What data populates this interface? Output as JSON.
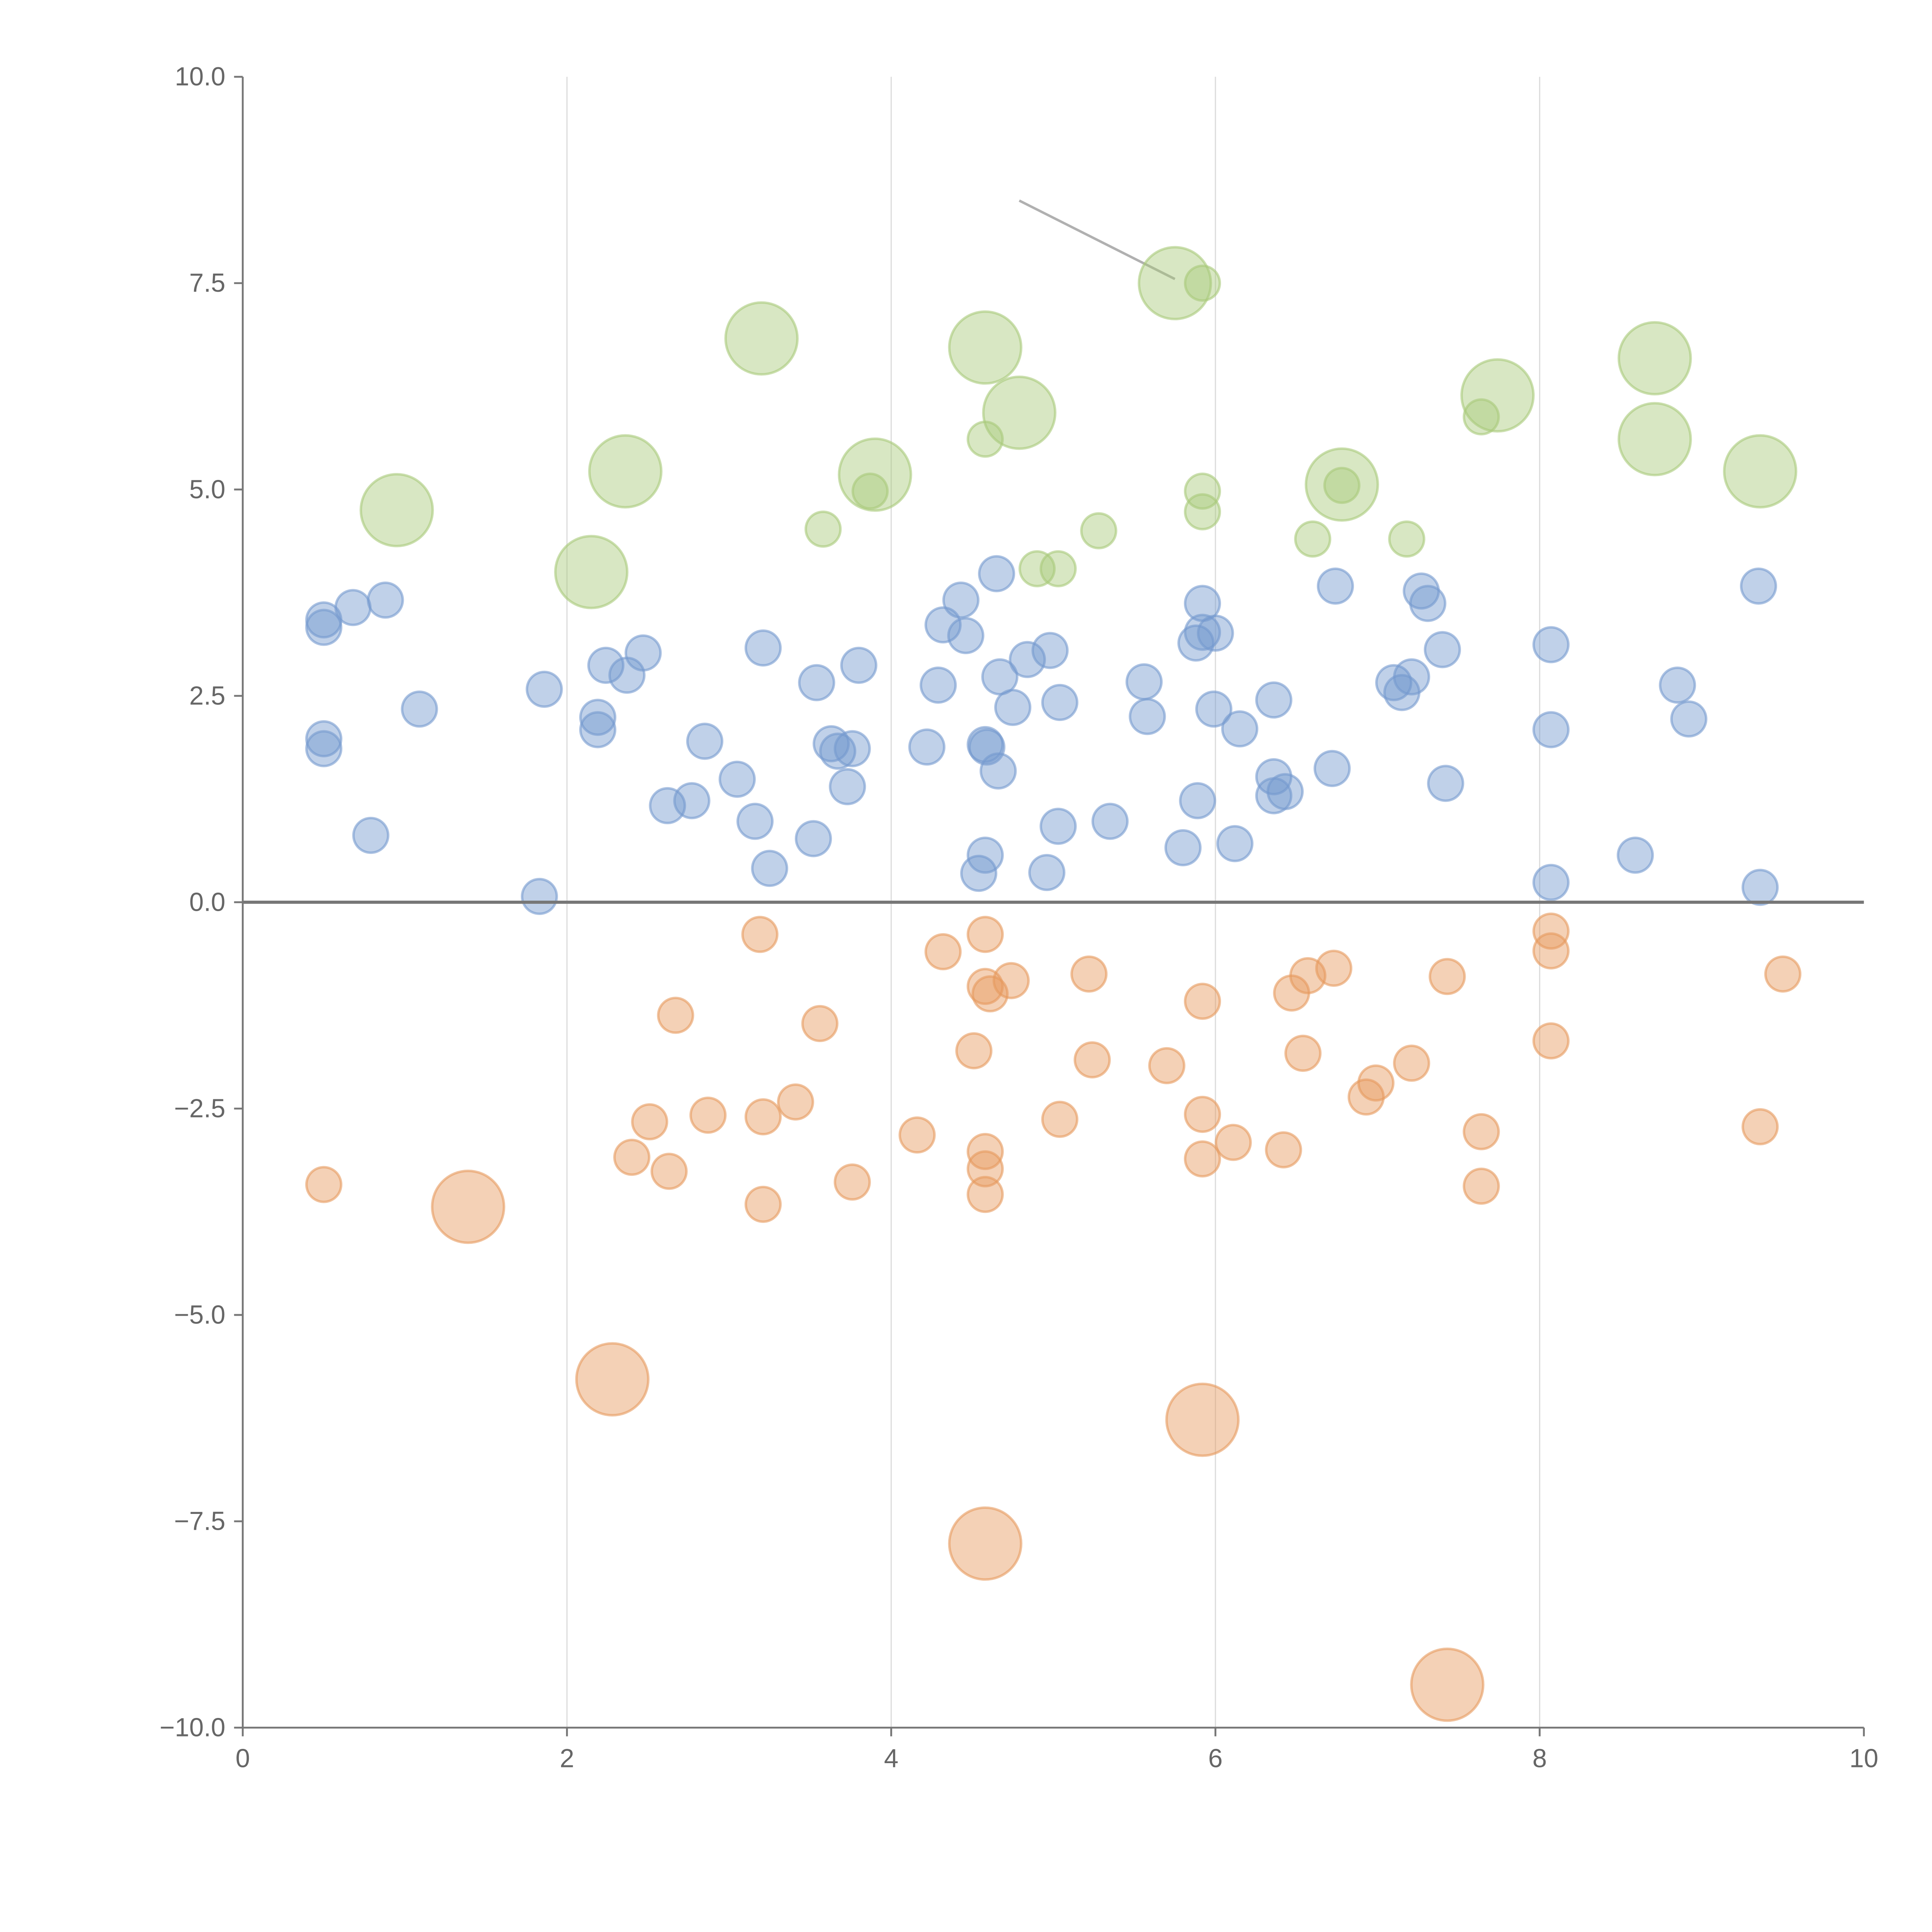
{
  "chart_data": {
    "type": "scatter",
    "title": "",
    "xlabel": "",
    "ylabel": "",
    "xlim": [
      0,
      10
    ],
    "ylim": [
      -10,
      10
    ],
    "grid": {
      "vertical": true,
      "horizontal": false
    },
    "zero_line": 0,
    "x_ticks": [
      "0",
      "2",
      "4",
      "6",
      "8",
      "10"
    ],
    "x_tick_values": [
      0,
      2,
      4,
      6,
      8,
      10
    ],
    "y_ticks": [
      "10.0",
      "7.5",
      "5.0",
      "2.5",
      "0.0",
      "−2.5",
      "−5.0",
      "−7.5",
      "−10.0"
    ],
    "y_tick_values": [
      10,
      7.5,
      5,
      2.5,
      0,
      -2.5,
      -5,
      -7.5,
      -10
    ],
    "point_format": "[x, y, size_class] where size_class 1 = small marker, 2 = large marker",
    "annotation_line": {
      "from": [
        4.79,
        8.5
      ],
      "to": [
        5.75,
        7.55
      ],
      "color": "#b0b0b0"
    },
    "series": [
      {
        "name": "green",
        "color": "#a9c97a",
        "points": [
          [
            0.95,
            4.75,
            2
          ],
          [
            2.15,
            4.0,
            2
          ],
          [
            2.36,
            5.22,
            2
          ],
          [
            3.2,
            6.83,
            2
          ],
          [
            3.9,
            5.18,
            2
          ],
          [
            3.87,
            4.98,
            1
          ],
          [
            3.58,
            4.52,
            1
          ],
          [
            4.58,
            6.72,
            2
          ],
          [
            4.79,
            5.93,
            2
          ],
          [
            4.58,
            5.61,
            1
          ],
          [
            4.9,
            4.04,
            1
          ],
          [
            5.03,
            4.04,
            1
          ],
          [
            5.28,
            4.5,
            1
          ],
          [
            5.75,
            7.5,
            2
          ],
          [
            5.92,
            7.5,
            1
          ],
          [
            5.92,
            4.98,
            1
          ],
          [
            5.92,
            4.73,
            1
          ],
          [
            6.6,
            4.4,
            1
          ],
          [
            6.78,
            5.06,
            2
          ],
          [
            6.78,
            5.05,
            1
          ],
          [
            7.18,
            4.4,
            1
          ],
          [
            7.74,
            6.14,
            2
          ],
          [
            7.64,
            5.88,
            1
          ],
          [
            8.71,
            6.59,
            2
          ],
          [
            8.71,
            5.61,
            2
          ],
          [
            9.36,
            5.22,
            2
          ]
        ]
      },
      {
        "name": "blue",
        "color": "#7499cf",
        "points": [
          [
            0.5,
            3.42,
            1
          ],
          [
            0.5,
            3.33,
            1
          ],
          [
            0.68,
            3.57,
            1
          ],
          [
            0.88,
            3.66,
            1
          ],
          [
            0.5,
            1.98,
            1
          ],
          [
            0.5,
            1.86,
            1
          ],
          [
            1.09,
            2.34,
            1
          ],
          [
            0.79,
            0.81,
            1
          ],
          [
            1.86,
            2.58,
            1
          ],
          [
            1.83,
            0.07,
            1
          ],
          [
            2.19,
            2.24,
            1
          ],
          [
            2.19,
            2.09,
            1
          ],
          [
            2.24,
            2.87,
            1
          ],
          [
            2.37,
            2.75,
            1
          ],
          [
            2.47,
            3.02,
            1
          ],
          [
            2.62,
            1.17,
            1
          ],
          [
            2.77,
            1.23,
            1
          ],
          [
            2.85,
            1.95,
            1
          ],
          [
            3.05,
            1.49,
            1
          ],
          [
            3.16,
            0.98,
            1
          ],
          [
            3.21,
            3.08,
            1
          ],
          [
            3.25,
            0.41,
            1
          ],
          [
            3.52,
            0.77,
            1
          ],
          [
            3.54,
            2.66,
            1
          ],
          [
            3.63,
            1.92,
            1
          ],
          [
            3.67,
            1.83,
            1
          ],
          [
            3.76,
            1.86,
            1
          ],
          [
            3.73,
            1.4,
            1
          ],
          [
            3.8,
            2.87,
            1
          ],
          [
            4.22,
            1.88,
            1
          ],
          [
            4.29,
            2.63,
            1
          ],
          [
            4.32,
            3.36,
            1
          ],
          [
            4.43,
            3.66,
            1
          ],
          [
            4.46,
            3.23,
            1
          ],
          [
            4.58,
            1.91,
            1
          ],
          [
            4.59,
            1.88,
            1
          ],
          [
            4.65,
            3.98,
            1
          ],
          [
            4.67,
            2.73,
            1
          ],
          [
            4.66,
            1.59,
            1
          ],
          [
            4.75,
            2.36,
            1
          ],
          [
            4.84,
            2.94,
            1
          ],
          [
            4.98,
            3.05,
            1
          ],
          [
            5.04,
            2.42,
            1
          ],
          [
            5.03,
            0.92,
            1
          ],
          [
            4.96,
            0.36,
            1
          ],
          [
            4.54,
            0.35,
            1
          ],
          [
            4.58,
            0.57,
            1
          ],
          [
            5.35,
            0.98,
            1
          ],
          [
            5.56,
            2.67,
            1
          ],
          [
            5.58,
            2.25,
            1
          ],
          [
            5.8,
            0.66,
            1
          ],
          [
            5.89,
            1.23,
            1
          ],
          [
            5.88,
            3.14,
            1
          ],
          [
            5.92,
            3.62,
            1
          ],
          [
            5.92,
            3.27,
            1
          ],
          [
            6.0,
            3.26,
            1
          ],
          [
            5.99,
            2.34,
            1
          ],
          [
            6.15,
            2.1,
            1
          ],
          [
            6.12,
            0.71,
            1
          ],
          [
            6.36,
            2.45,
            1
          ],
          [
            6.36,
            1.52,
            1
          ],
          [
            6.36,
            1.29,
            1
          ],
          [
            6.43,
            1.34,
            1
          ],
          [
            6.72,
            1.62,
            1
          ],
          [
            6.74,
            3.83,
            1
          ],
          [
            7.1,
            2.66,
            1
          ],
          [
            7.15,
            2.54,
            1
          ],
          [
            7.21,
            2.73,
            1
          ],
          [
            7.27,
            3.77,
            1
          ],
          [
            7.31,
            3.62,
            1
          ],
          [
            7.4,
            3.06,
            1
          ],
          [
            7.42,
            1.44,
            1
          ],
          [
            8.07,
            3.12,
            1
          ],
          [
            8.07,
            2.09,
            1
          ],
          [
            8.07,
            0.24,
            1
          ],
          [
            8.59,
            0.57,
            1
          ],
          [
            8.85,
            2.63,
            1
          ],
          [
            8.92,
            2.22,
            1
          ],
          [
            9.35,
            3.83,
            1
          ],
          [
            9.36,
            0.18,
            1
          ]
        ]
      },
      {
        "name": "orange",
        "color": "#e69a5e",
        "points": [
          [
            3.19,
            -0.39,
            1
          ],
          [
            2.67,
            -1.37,
            1
          ],
          [
            3.56,
            -1.47,
            1
          ],
          [
            4.32,
            -0.6,
            1
          ],
          [
            4.58,
            -0.39,
            1
          ],
          [
            4.58,
            -1.02,
            1
          ],
          [
            4.61,
            -1.11,
            1
          ],
          [
            4.74,
            -0.95,
            1
          ],
          [
            4.51,
            -1.8,
            1
          ],
          [
            5.22,
            -0.87,
            1
          ],
          [
            5.24,
            -1.91,
            1
          ],
          [
            5.7,
            -1.98,
            1
          ],
          [
            5.92,
            -1.2,
            1
          ],
          [
            6.47,
            -1.1,
            1
          ],
          [
            6.57,
            -0.89,
            1
          ],
          [
            6.73,
            -0.8,
            1
          ],
          [
            6.54,
            -1.83,
            1
          ],
          [
            6.93,
            -2.36,
            1
          ],
          [
            6.99,
            -2.19,
            1
          ],
          [
            7.21,
            -1.95,
            1
          ],
          [
            7.43,
            -0.9,
            1
          ],
          [
            8.07,
            -0.35,
            1
          ],
          [
            8.07,
            -0.59,
            1
          ],
          [
            8.07,
            -1.68,
            1
          ],
          [
            9.5,
            -0.87,
            1
          ],
          [
            9.36,
            -2.72,
            1
          ],
          [
            7.64,
            -2.78,
            1
          ],
          [
            7.64,
            -3.44,
            1
          ],
          [
            6.42,
            -3.0,
            1
          ],
          [
            6.11,
            -2.91,
            1
          ],
          [
            5.92,
            -2.57,
            1
          ],
          [
            5.92,
            -3.11,
            1
          ],
          [
            5.04,
            -2.63,
            1
          ],
          [
            4.58,
            -3.02,
            1
          ],
          [
            4.58,
            -3.23,
            1
          ],
          [
            4.58,
            -3.54,
            1
          ],
          [
            4.16,
            -2.82,
            1
          ],
          [
            3.76,
            -3.39,
            1
          ],
          [
            3.41,
            -2.42,
            1
          ],
          [
            3.21,
            -2.6,
            1
          ],
          [
            3.21,
            -3.66,
            1
          ],
          [
            2.87,
            -2.58,
            1
          ],
          [
            2.51,
            -2.66,
            1
          ],
          [
            2.4,
            -3.09,
            1
          ],
          [
            2.63,
            -3.26,
            1
          ],
          [
            0.5,
            -3.42,
            1
          ],
          [
            1.39,
            -3.69,
            2
          ],
          [
            2.28,
            -5.78,
            2
          ],
          [
            5.92,
            -6.27,
            2
          ],
          [
            4.58,
            -7.77,
            2
          ],
          [
            7.43,
            -9.48,
            2
          ]
        ]
      }
    ]
  }
}
